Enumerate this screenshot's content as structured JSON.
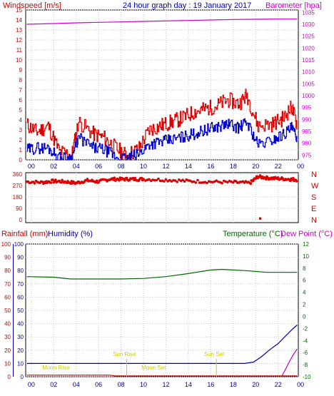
{
  "header": {
    "windspeed_label": "Windspeed [m/s]",
    "title": "24 hour graph day : 19 January 2017",
    "barometer_label": "Barometer [hpa]"
  },
  "lower_header": {
    "rainfall_label": "Rainfall (mm)",
    "humidity_label": "Humidity (%)",
    "temperature_label": "Temperature (°C)",
    "dewpoint_label": "Dew Point (°C)"
  },
  "colors": {
    "wind_avg": "#0000cc",
    "wind_gust": "#dd0000",
    "barometer": "#cc00cc",
    "direction": "#dd0000",
    "rain": "#cc0000",
    "humidity": "#0000aa",
    "temperature": "#006600",
    "dewpoint": "#cc00cc",
    "astro": "#cccc00",
    "left_axis_text": "#cc0000",
    "humidity_axis_text": "#0000aa",
    "temperature_axis_text": "#006600",
    "barometer_axis_text": "#cc00cc"
  },
  "chart_data": [
    {
      "type": "line",
      "name": "wind_barometer",
      "x_ticks": [
        "00",
        "02",
        "04",
        "06",
        "08",
        "10",
        "12",
        "14",
        "16",
        "18",
        "20",
        "22",
        "00"
      ],
      "x_range_hours": [
        -0.5,
        23.8
      ],
      "wind_ylim": [
        0,
        15
      ],
      "wind_ticks": [
        0,
        1,
        2,
        3,
        4,
        5,
        6,
        7,
        8,
        9,
        10,
        11,
        12,
        13,
        14,
        15
      ],
      "baro_ylim": [
        973,
        1036
      ],
      "baro_ticks": [
        975,
        980,
        985,
        990,
        995,
        1000,
        1005,
        1010,
        1015,
        1020,
        1025,
        1030,
        1035
      ],
      "series": [
        {
          "name": "gust",
          "x": [
            -0.4,
            0.5,
            1.5,
            2.5,
            3.6,
            4.2,
            5.5,
            6.5,
            7.5,
            8.5,
            9.6,
            10.5,
            11.5,
            12.5,
            13.5,
            14.5,
            15.5,
            16.5,
            17.5,
            18.5,
            19.2,
            20.2,
            21.5,
            22.5,
            23.2,
            23.7
          ],
          "y": [
            3.5,
            2.8,
            3.4,
            0.8,
            0.5,
            3.8,
            2.6,
            2.2,
            1.2,
            0.4,
            1.2,
            3.0,
            3.4,
            3.8,
            4.2,
            4.8,
            5.1,
            5.4,
            6.0,
            5.6,
            6.5,
            3.4,
            3.6,
            4.2,
            5.3,
            3.5
          ]
        },
        {
          "name": "average",
          "x": [
            -0.4,
            0.5,
            1.5,
            2.5,
            3.6,
            4.2,
            5.5,
            6.5,
            7.5,
            8.5,
            9.6,
            10.5,
            11.5,
            12.5,
            13.5,
            14.5,
            15.5,
            16.5,
            17.5,
            18.5,
            19.2,
            20.2,
            21.5,
            22.5,
            23.2,
            23.7
          ],
          "y": [
            1.0,
            1.2,
            1.2,
            0.2,
            0.2,
            2.2,
            1.2,
            1.0,
            0.3,
            0.1,
            0.6,
            1.6,
            1.8,
            2.0,
            2.3,
            2.6,
            3.0,
            3.3,
            3.6,
            3.2,
            3.8,
            1.5,
            2.0,
            2.6,
            3.2,
            2.2
          ]
        },
        {
          "name": "barometer",
          "x": [
            -0.4,
            2,
            4,
            6,
            8,
            10,
            12,
            14,
            16,
            18,
            20,
            22,
            23.7
          ],
          "y": [
            1030,
            1030.3,
            1030.6,
            1030.8,
            1031,
            1031.2,
            1031.4,
            1031.6,
            1031.8,
            1032,
            1032.1,
            1032.2,
            1032.2
          ]
        }
      ]
    },
    {
      "type": "scatter",
      "name": "wind_direction",
      "y_ticks": [
        "360",
        "270",
        "180",
        "90",
        "0"
      ],
      "right_labels": [
        "N",
        "W",
        "S",
        "E",
        "N"
      ],
      "ylim": [
        0,
        360
      ],
      "series": [
        {
          "name": "direction",
          "x": [
            -0.4,
            1,
            2,
            3,
            4,
            5,
            6,
            7,
            8,
            9,
            10,
            12,
            14,
            16,
            18,
            19.5,
            20.2,
            21,
            22,
            23,
            23.7
          ],
          "y": [
            300,
            295,
            305,
            300,
            290,
            310,
            300,
            320,
            320,
            320,
            320,
            315,
            305,
            300,
            295,
            290,
            340,
            330,
            325,
            320,
            315
          ]
        }
      ],
      "outliers": [
        {
          "x": 20.4,
          "y": 10
        }
      ]
    },
    {
      "type": "line",
      "name": "rain_humidity_temperature",
      "x_ticks": [
        "00",
        "02",
        "04",
        "06",
        "08",
        "10",
        "12",
        "14",
        "16",
        "18",
        "20",
        "22",
        "00"
      ],
      "rain_ylim": [
        0,
        100
      ],
      "rain_ticks": [
        0,
        10,
        20,
        30,
        40,
        50,
        60,
        70,
        80,
        90,
        100
      ],
      "humidity_ticks": [
        0,
        10,
        20,
        30,
        40,
        50,
        60,
        70,
        80,
        90,
        100
      ],
      "temp_ylim": [
        -10,
        12
      ],
      "temp_ticks": [
        -10,
        -8,
        -6,
        -4,
        -2,
        0,
        2,
        4,
        6,
        8,
        10,
        12
      ],
      "series": [
        {
          "name": "temperature",
          "x": [
            -0.4,
            2,
            3.5,
            6,
            8,
            10,
            12,
            14,
            16,
            17,
            19,
            21,
            23.7
          ],
          "y": [
            6.6,
            6.5,
            6.2,
            6.2,
            6.2,
            6.3,
            6.6,
            7.1,
            7.7,
            7.8,
            7.6,
            7.3,
            7.3
          ]
        },
        {
          "name": "humidity",
          "x": [
            -0.4,
            5,
            10,
            15,
            19,
            19.8,
            20.5,
            21.2,
            22,
            22.7,
            23.3,
            23.7
          ],
          "y": [
            10,
            10,
            10,
            10,
            10,
            11,
            15,
            20,
            25,
            31,
            36,
            39
          ]
        },
        {
          "name": "dewpoint",
          "x": [
            22.3,
            22.6,
            23,
            23.4,
            23.7
          ],
          "y": [
            -10,
            -9,
            -7.5,
            -6.2,
            -5.4
          ]
        },
        {
          "name": "rainfall",
          "x": [
            -0.4,
            7,
            7.5,
            23.7
          ],
          "y": [
            1.2,
            1.2,
            0.6,
            0.6
          ]
        }
      ],
      "annotations": [
        {
          "text": "Moon Rise",
          "x": 2.2,
          "row": "low"
        },
        {
          "text": "Sun Rise",
          "x": 8.3,
          "row": "high"
        },
        {
          "text": "Moon Set",
          "x": 10.9,
          "row": "low"
        },
        {
          "text": "Sun Set",
          "x": 16.3,
          "row": "high"
        }
      ]
    }
  ]
}
